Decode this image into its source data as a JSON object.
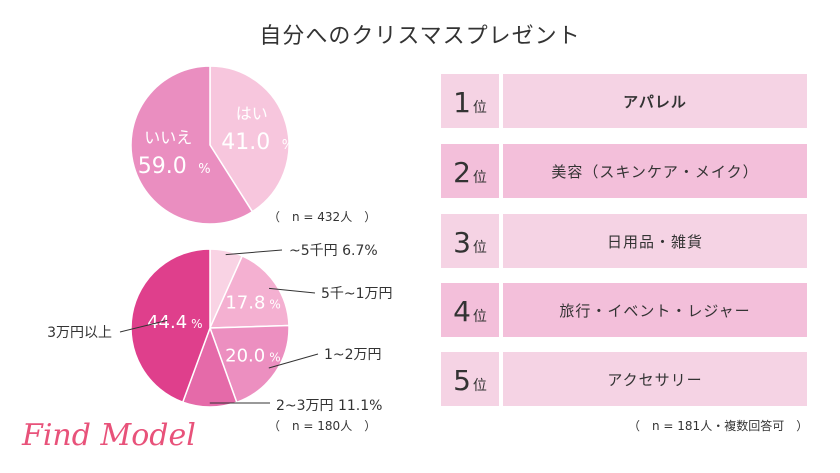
{
  "title": "自分へのクリスマスプレゼント",
  "chart_data": [
    {
      "type": "pie",
      "categories": [
        "はい",
        "いいえ"
      ],
      "values": [
        41.0,
        59.0
      ],
      "value_labels": [
        "41.0",
        "59.0"
      ],
      "colors": [
        "#f7c6dd",
        "#ea8ec0"
      ],
      "note": "（　n = 432人　）"
    },
    {
      "type": "pie",
      "categories": [
        "~5千円",
        "5千~1万円",
        "1~2万円",
        "2~3万円",
        "3万円以上"
      ],
      "values": [
        6.7,
        17.8,
        20.0,
        11.1,
        44.4
      ],
      "value_labels": [
        "6.7%",
        "17.8",
        "20.0",
        "11.1%",
        "44.4"
      ],
      "colors": [
        "#f9d3e4",
        "#f4b0d1",
        "#ec8fc0",
        "#e56aa9",
        "#df3f8c"
      ],
      "note": "（　n = 180人　）"
    }
  ],
  "ranking": {
    "suffix": "位",
    "items": [
      {
        "rank": "1",
        "label": "アパレル"
      },
      {
        "rank": "2",
        "label": "美容（スキンケア・メイク）"
      },
      {
        "rank": "3",
        "label": "日用品・雑貨"
      },
      {
        "rank": "4",
        "label": "旅行・イベント・レジャー"
      },
      {
        "rank": "5",
        "label": "アクセサリー"
      }
    ],
    "note": "（　n = 181人・複数回答可　）",
    "colors": [
      "#f5d3e4",
      "#f3bfda"
    ]
  },
  "logo": "Find Model"
}
